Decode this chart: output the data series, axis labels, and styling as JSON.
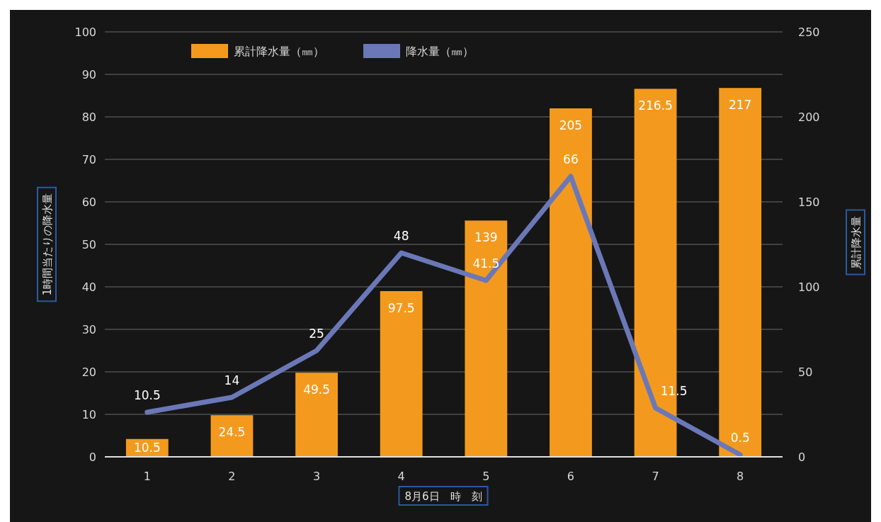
{
  "chart_data": {
    "type": "bar",
    "categories": [
      "1",
      "2",
      "3",
      "4",
      "5",
      "6",
      "7",
      "8"
    ],
    "xlabel": "8月6日　時　刻",
    "ylabel": "1時間当たりの降水量",
    "y2label": "累計降水量",
    "ylim": [
      0,
      100
    ],
    "yticks": [
      0,
      10,
      20,
      30,
      40,
      50,
      60,
      70,
      80,
      90,
      100
    ],
    "y2lim": [
      0,
      250
    ],
    "y2ticks": [
      0,
      50,
      100,
      150,
      200,
      250
    ],
    "data_labels": true,
    "grid": "y",
    "legend": "top left",
    "series": [
      {
        "name": "累計降水量（㎜）",
        "axis": "y2",
        "color": "#f39a1e",
        "values": [
          10.5,
          24.5,
          49.5,
          97.5,
          139,
          205,
          216.5,
          217
        ]
      },
      {
        "name": "降水量（㎜）",
        "type": "line",
        "color": "#6b78b8",
        "values": [
          10.5,
          14,
          25,
          48,
          41.5,
          66,
          11.5,
          0.5
        ]
      }
    ]
  }
}
